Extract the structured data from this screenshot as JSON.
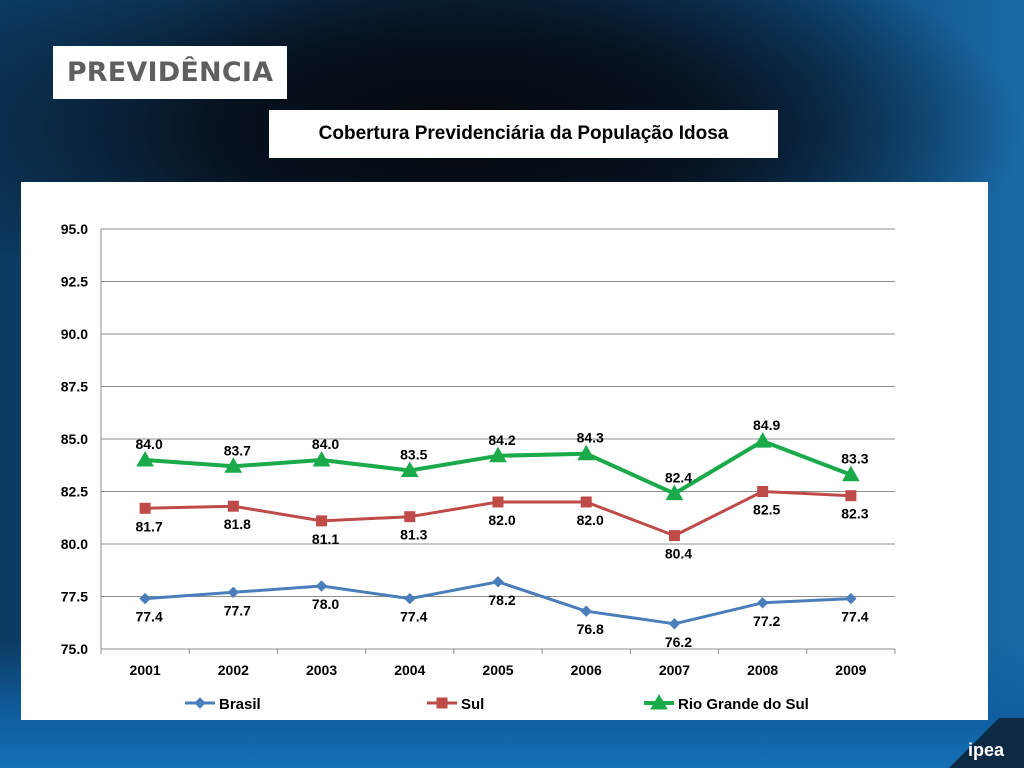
{
  "header": {
    "title": "PREVIDÊNCIA"
  },
  "chart_data": {
    "type": "line",
    "title": "Cobertura Previdenciária da População Idosa",
    "xlabel": "",
    "ylabel": "",
    "categories": [
      "2001",
      "2002",
      "2003",
      "2004",
      "2005",
      "2006",
      "2007",
      "2008",
      "2009"
    ],
    "ylim": [
      75.0,
      95.0
    ],
    "yticks": [
      "75.0",
      "77.5",
      "80.0",
      "82.5",
      "85.0",
      "87.5",
      "90.0",
      "92.5",
      "95.0"
    ],
    "grid": true,
    "legend_position": "bottom",
    "series": [
      {
        "name": "Brasil",
        "color": "#4a7ebb",
        "marker": "diamond",
        "values": [
          77.4,
          77.7,
          78.0,
          77.4,
          78.2,
          76.8,
          76.2,
          77.2,
          77.4
        ],
        "labels": [
          "77.4",
          "77.7",
          "78.0",
          "77.4",
          "78.2",
          "76.8",
          "76.2",
          "77.2",
          "77.4"
        ]
      },
      {
        "name": "Sul",
        "color": "#be4b48",
        "marker": "square",
        "values": [
          81.7,
          81.8,
          81.1,
          81.3,
          82.0,
          82.0,
          80.4,
          82.5,
          82.3
        ],
        "labels": [
          "81.7",
          "81.8",
          "81.1",
          "81.3",
          "82.0",
          "82.0",
          "80.4",
          "82.5",
          "82.3"
        ]
      },
      {
        "name": "Rio Grande do Sul",
        "color": "#1aaa4a",
        "marker": "triangle",
        "values": [
          84.0,
          83.7,
          84.0,
          83.5,
          84.2,
          84.3,
          82.4,
          84.9,
          83.3
        ],
        "labels": [
          "84.0",
          "83.7",
          "84.0",
          "83.5",
          "84.2",
          "84.3",
          "82.4",
          "84.9",
          "83.3"
        ]
      }
    ]
  },
  "footer": {
    "logo": "ipea"
  }
}
